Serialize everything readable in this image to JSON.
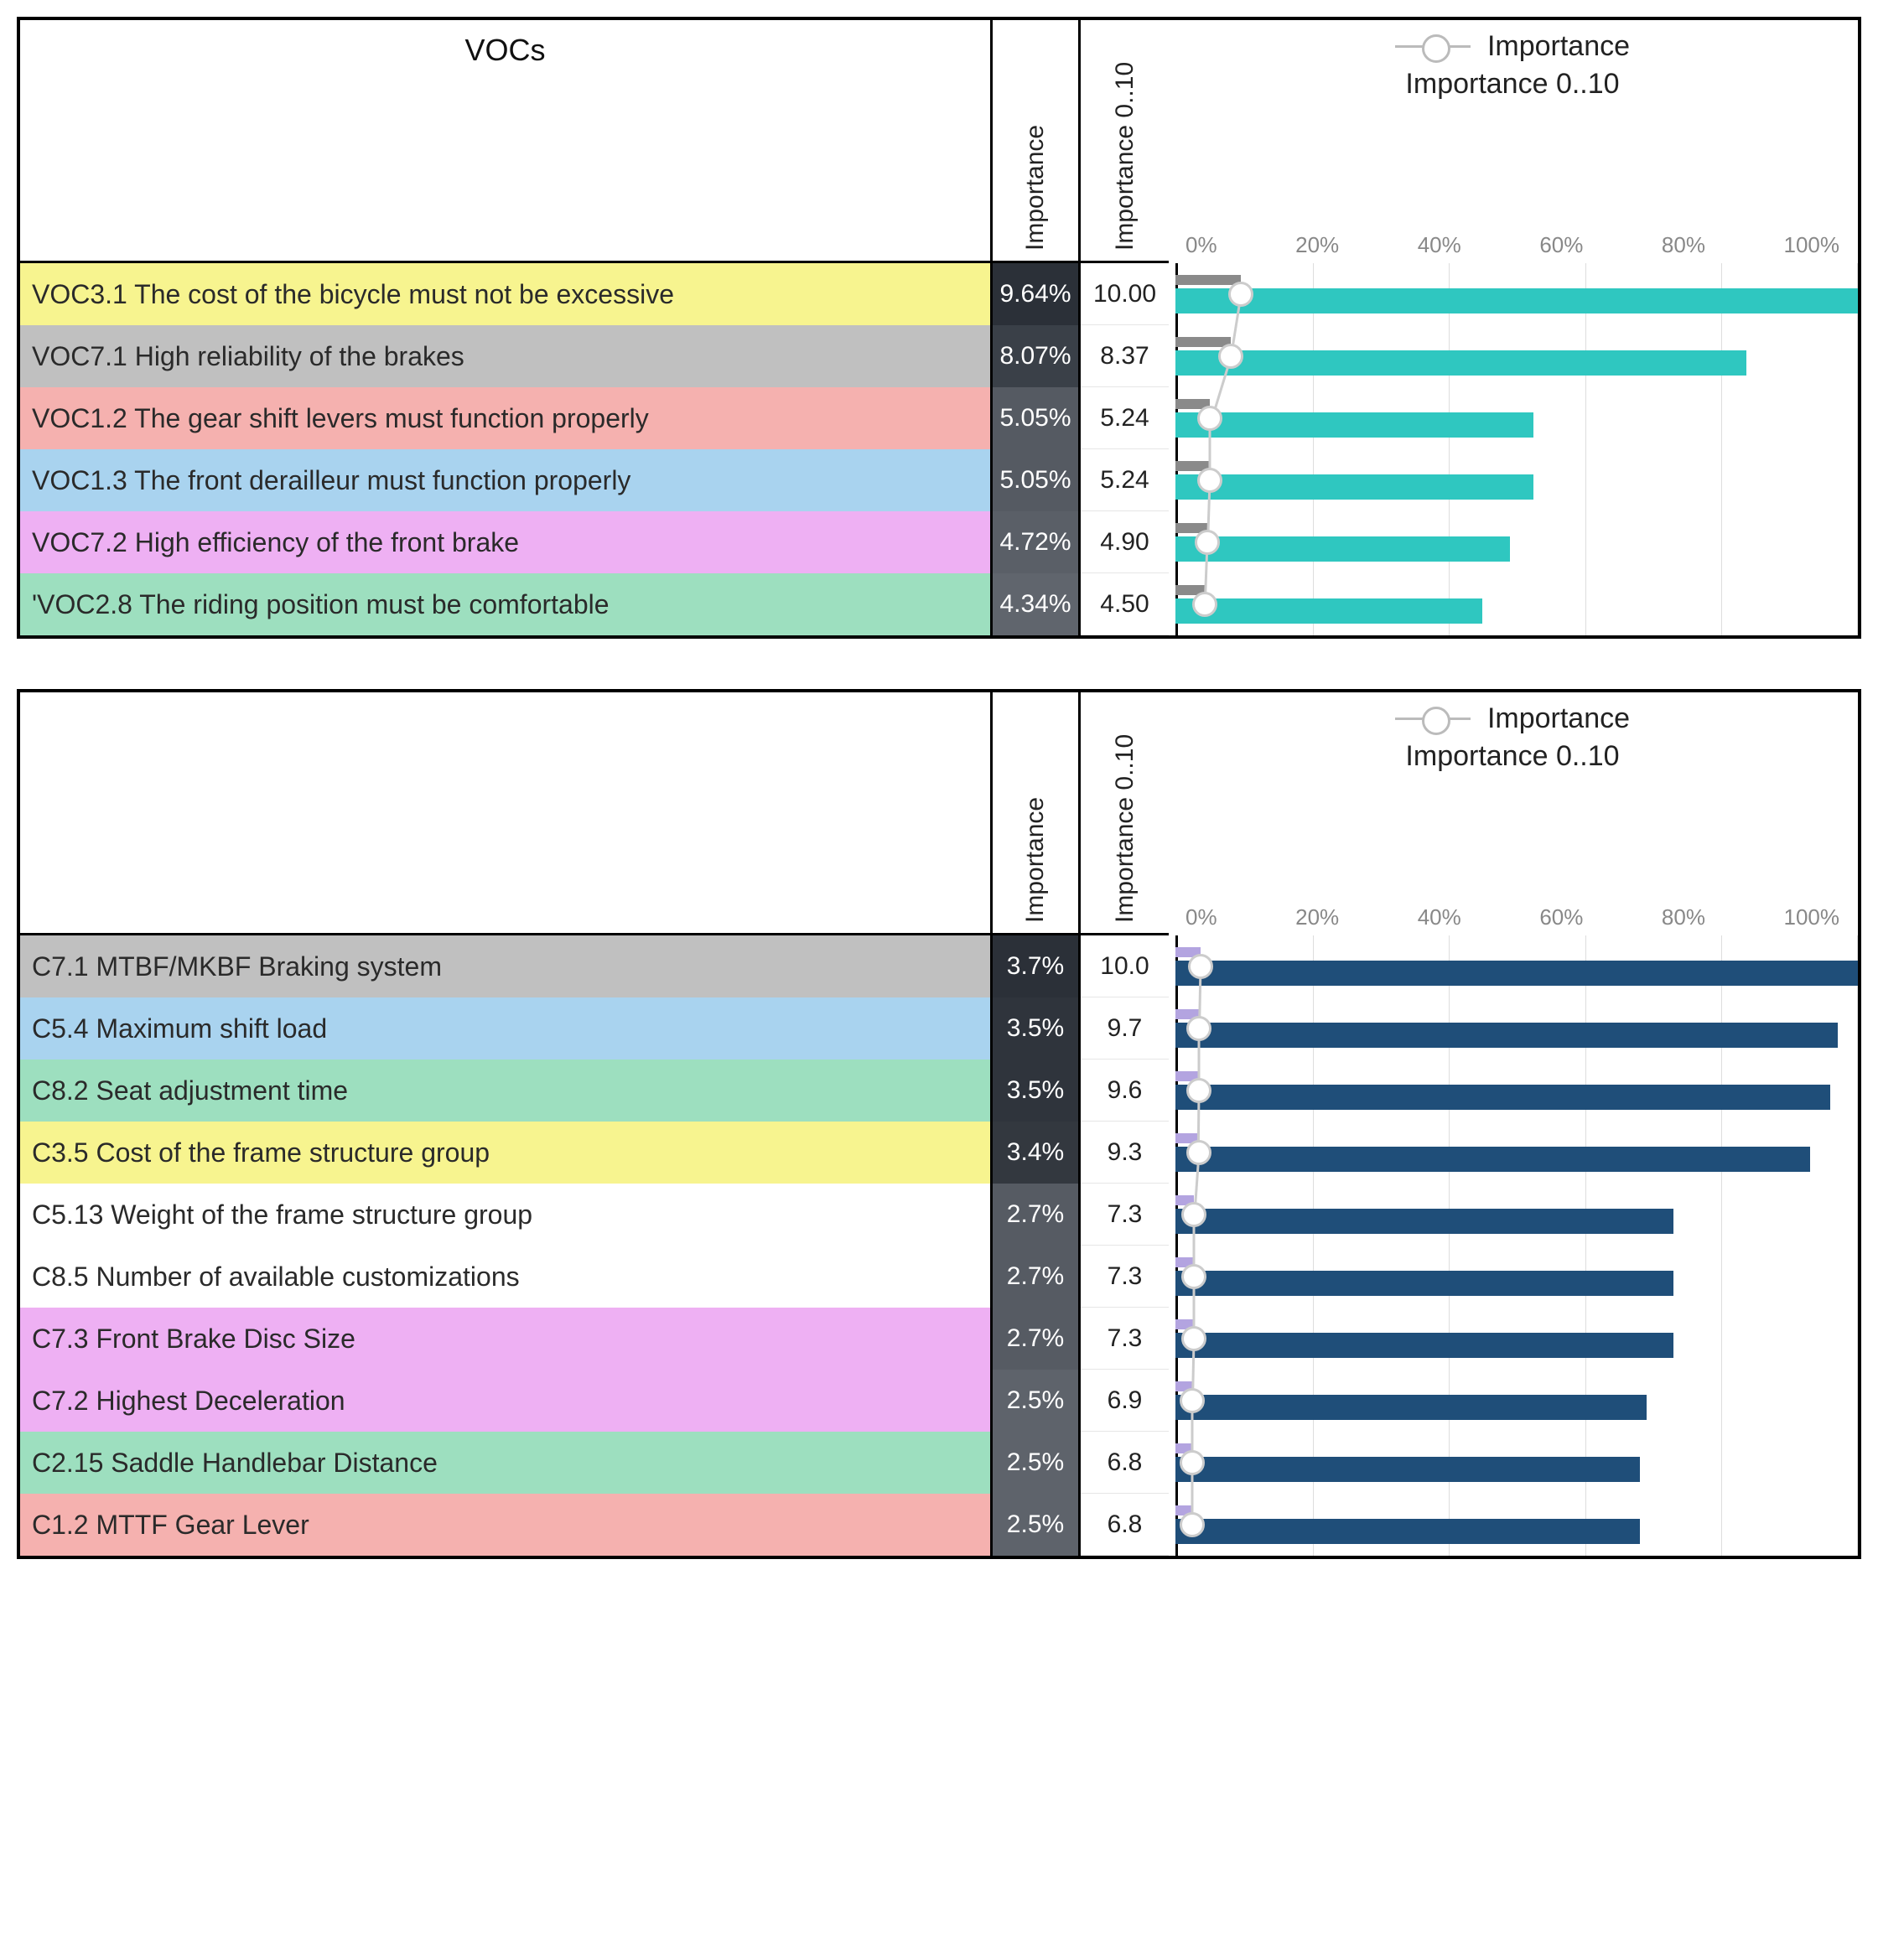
{
  "panel1": {
    "header_title": "VOCs",
    "col_importance": "Importance",
    "col_importance10": "Importance 0..10",
    "legend": {
      "l1": "Importance",
      "l2": "Importance 0..10"
    },
    "axis_ticks": [
      "0%",
      "20%",
      "40%",
      "60%",
      "80%",
      "100%"
    ],
    "bar_small_color": "#8a8a8a",
    "bar_big_color": "#2fc7c0",
    "marker_border": "#cccccc",
    "rows": [
      {
        "label": "VOC3.1 The cost of the bicycle must not be excessive",
        "bg": "#f7f48f",
        "imp": "9.64%",
        "imp10": "10.00",
        "impcell_bg": "#2b3038",
        "pct_small": 9.64,
        "pct_big": 100
      },
      {
        "label": "VOC7.1 High reliability of the brakes",
        "bg": "#c0c0c0",
        "imp": "8.07%",
        "imp10": "8.37",
        "impcell_bg": "#3a4048",
        "pct_small": 8.07,
        "pct_big": 83.7
      },
      {
        "label": "VOC1.2 The gear shift levers must function properly",
        "bg": "#f5b1af",
        "imp": "5.05%",
        "imp10": "5.24",
        "impcell_bg": "#555a62",
        "pct_small": 5.05,
        "pct_big": 52.4
      },
      {
        "label": "VOC1.3 The front derailleur must function properly",
        "bg": "#a9d3ef",
        "imp": "5.05%",
        "imp10": "5.24",
        "impcell_bg": "#555a62",
        "pct_small": 5.05,
        "pct_big": 52.4
      },
      {
        "label": "VOC7.2 High efficiency of the front brake",
        "bg": "#eeb0f3",
        "imp": "4.72%",
        "imp10": "4.90",
        "impcell_bg": "#5a5f67",
        "pct_small": 4.72,
        "pct_big": 49.0
      },
      {
        "label": "'VOC2.8 The riding position must be comfortable",
        "bg": "#9ddfbf",
        "imp": "4.34%",
        "imp10": "4.50",
        "impcell_bg": "#60656d",
        "pct_small": 4.34,
        "pct_big": 45.0
      }
    ]
  },
  "panel2": {
    "header_title": "",
    "col_importance": "Importance",
    "col_importance10": "Importance 0..10",
    "legend": {
      "l1": "Importance",
      "l2": "Importance 0..10"
    },
    "axis_ticks": [
      "0%",
      "20%",
      "40%",
      "60%",
      "80%",
      "100%"
    ],
    "bar_small_color": "#b3a4e0",
    "bar_big_color": "#1f4e79",
    "marker_border": "#cccccc",
    "rows": [
      {
        "label": "C7.1 MTBF/MKBF Braking system",
        "bg": "#c0c0c0",
        "imp": "3.7%",
        "imp10": "10.0",
        "impcell_bg": "#2b3038",
        "pct_small": 3.7,
        "pct_big": 100
      },
      {
        "label": "C5.4 Maximum shift load",
        "bg": "#a9d3ef",
        "imp": "3.5%",
        "imp10": "9.7",
        "impcell_bg": "#2f343c",
        "pct_small": 3.5,
        "pct_big": 97
      },
      {
        "label": "C8.2 Seat adjustment time",
        "bg": "#9ddfbf",
        "imp": "3.5%",
        "imp10": "9.6",
        "impcell_bg": "#2f343c",
        "pct_small": 3.5,
        "pct_big": 96
      },
      {
        "label": "C3.5 Cost of the frame structure group",
        "bg": "#f7f48f",
        "imp": "3.4%",
        "imp10": "9.3",
        "impcell_bg": "#33383f",
        "pct_small": 3.4,
        "pct_big": 93
      },
      {
        "label": "C5.13 Weight of the frame structure group",
        "bg": "#ffffff",
        "imp": "2.7%",
        "imp10": "7.3",
        "impcell_bg": "#565b63",
        "pct_small": 2.7,
        "pct_big": 73
      },
      {
        "label": "C8.5 Number of available customizations",
        "bg": "#ffffff",
        "imp": "2.7%",
        "imp10": "7.3",
        "impcell_bg": "#565b63",
        "pct_small": 2.7,
        "pct_big": 73
      },
      {
        "label": "C7.3 Front Brake Disc Size",
        "bg": "#eeb0f3",
        "imp": "2.7%",
        "imp10": "7.3",
        "impcell_bg": "#565b63",
        "pct_small": 2.7,
        "pct_big": 73
      },
      {
        "label": "C7.2 Highest Deceleration",
        "bg": "#eeb0f3",
        "imp": "2.5%",
        "imp10": "6.9",
        "impcell_bg": "#5e636b",
        "pct_small": 2.5,
        "pct_big": 69
      },
      {
        "label": "C2.15 Saddle Handlebar Distance",
        "bg": "#9ddfbf",
        "imp": "2.5%",
        "imp10": "6.8",
        "impcell_bg": "#5e636b",
        "pct_small": 2.5,
        "pct_big": 68
      },
      {
        "label": "C1.2 MTTF Gear Lever",
        "bg": "#f5b1af",
        "imp": "2.5%",
        "imp10": "6.8",
        "impcell_bg": "#5e636b",
        "pct_small": 2.5,
        "pct_big": 68
      }
    ]
  }
}
